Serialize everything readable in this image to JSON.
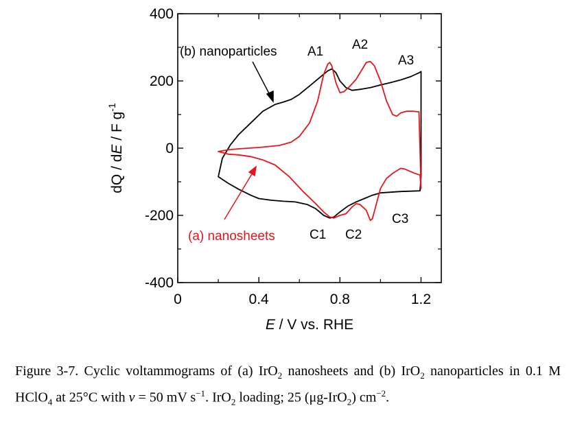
{
  "chart_data": {
    "type": "line",
    "xlabel": {
      "italic": "E",
      "rest": " / V vs. RHE"
    },
    "ylabel": {
      "pre": "dQ / d",
      "italic": "E",
      "mid": " / F g",
      "sup": "-1"
    },
    "xlim": [
      0,
      1.3
    ],
    "ylim": [
      -400,
      400
    ],
    "xticks": [
      {
        "v": 0,
        "label": "0"
      },
      {
        "v": 0.4,
        "label": "0.4"
      },
      {
        "v": 0.8,
        "label": "0.8"
      },
      {
        "v": 1.2,
        "label": "1.2"
      }
    ],
    "yticks": [
      {
        "v": -400,
        "label": "-400"
      },
      {
        "v": -200,
        "label": "-200"
      },
      {
        "v": 0,
        "label": "0"
      },
      {
        "v": 200,
        "label": "200"
      },
      {
        "v": 400,
        "label": "400"
      }
    ],
    "grid": false,
    "series": [
      {
        "name": "(b) nanoparticles",
        "color": "#000000",
        "points": [
          [
            0.2,
            -85
          ],
          [
            0.22,
            -30
          ],
          [
            0.26,
            10
          ],
          [
            0.3,
            40
          ],
          [
            0.36,
            75
          ],
          [
            0.42,
            110
          ],
          [
            0.48,
            130
          ],
          [
            0.52,
            137
          ],
          [
            0.56,
            145
          ],
          [
            0.6,
            160
          ],
          [
            0.65,
            185
          ],
          [
            0.7,
            210
          ],
          [
            0.74,
            230
          ],
          [
            0.76,
            236
          ],
          [
            0.78,
            225
          ],
          [
            0.8,
            200
          ],
          [
            0.83,
            180
          ],
          [
            0.86,
            172
          ],
          [
            0.9,
            175
          ],
          [
            0.95,
            180
          ],
          [
            1.0,
            188
          ],
          [
            1.05,
            195
          ],
          [
            1.1,
            203
          ],
          [
            1.15,
            213
          ],
          [
            1.19,
            224
          ],
          [
            1.2,
            228
          ],
          [
            1.2,
            -85
          ],
          [
            1.195,
            -127
          ],
          [
            1.15,
            -128
          ],
          [
            1.1,
            -129
          ],
          [
            1.05,
            -131
          ],
          [
            1.0,
            -133
          ],
          [
            0.96,
            -140
          ],
          [
            0.92,
            -150
          ],
          [
            0.88,
            -160
          ],
          [
            0.84,
            -172
          ],
          [
            0.8,
            -190
          ],
          [
            0.77,
            -205
          ],
          [
            0.75,
            -208
          ],
          [
            0.72,
            -200
          ],
          [
            0.68,
            -180
          ],
          [
            0.64,
            -168
          ],
          [
            0.58,
            -160
          ],
          [
            0.52,
            -158
          ],
          [
            0.46,
            -155
          ],
          [
            0.4,
            -150
          ],
          [
            0.36,
            -140
          ],
          [
            0.3,
            -122
          ],
          [
            0.25,
            -105
          ],
          [
            0.2,
            -85
          ]
        ]
      },
      {
        "name": "(a) nanosheets",
        "color": "#e8141b",
        "points": [
          [
            0.2,
            -10
          ],
          [
            0.25,
            -5
          ],
          [
            0.3,
            -2
          ],
          [
            0.4,
            2
          ],
          [
            0.5,
            8
          ],
          [
            0.56,
            18
          ],
          [
            0.6,
            35
          ],
          [
            0.65,
            75
          ],
          [
            0.69,
            140
          ],
          [
            0.72,
            220
          ],
          [
            0.74,
            250
          ],
          [
            0.75,
            255
          ],
          [
            0.76,
            245
          ],
          [
            0.78,
            195
          ],
          [
            0.8,
            165
          ],
          [
            0.82,
            168
          ],
          [
            0.85,
            185
          ],
          [
            0.88,
            205
          ],
          [
            0.91,
            235
          ],
          [
            0.93,
            255
          ],
          [
            0.95,
            258
          ],
          [
            0.97,
            245
          ],
          [
            1.0,
            200
          ],
          [
            1.03,
            140
          ],
          [
            1.06,
            100
          ],
          [
            1.08,
            95
          ],
          [
            1.1,
            105
          ],
          [
            1.13,
            110
          ],
          [
            1.16,
            110
          ],
          [
            1.19,
            108
          ],
          [
            1.2,
            -120
          ],
          [
            1.195,
            -80
          ],
          [
            1.17,
            -75
          ],
          [
            1.15,
            -70
          ],
          [
            1.12,
            -62
          ],
          [
            1.1,
            -60
          ],
          [
            1.06,
            -75
          ],
          [
            1.03,
            -90
          ],
          [
            1.0,
            -120
          ],
          [
            0.98,
            -165
          ],
          [
            0.96,
            -210
          ],
          [
            0.95,
            -215
          ],
          [
            0.93,
            -185
          ],
          [
            0.9,
            -168
          ],
          [
            0.88,
            -165
          ],
          [
            0.86,
            -175
          ],
          [
            0.83,
            -195
          ],
          [
            0.8,
            -200
          ],
          [
            0.77,
            -208
          ],
          [
            0.75,
            -205
          ],
          [
            0.72,
            -190
          ],
          [
            0.68,
            -165
          ],
          [
            0.62,
            -130
          ],
          [
            0.55,
            -85
          ],
          [
            0.48,
            -50
          ],
          [
            0.42,
            -35
          ],
          [
            0.36,
            -25
          ],
          [
            0.3,
            -20
          ],
          [
            0.25,
            -18
          ],
          [
            0.2,
            -10
          ]
        ]
      }
    ],
    "annotations": [
      {
        "id": "A1",
        "text": "A1"
      },
      {
        "id": "A2",
        "text": "A2"
      },
      {
        "id": "A3",
        "text": "A3"
      },
      {
        "id": "C1",
        "text": "C1"
      },
      {
        "id": "C2",
        "text": "C2"
      },
      {
        "id": "C3",
        "text": "C3"
      }
    ]
  },
  "caption": {
    "prefix": "Figure 3-7. Cyclic voltammograms of (a) IrO",
    "s1": "2",
    "t1": " nanosheets and (b) IrO",
    "s2": "2",
    "t2": " nanoparticles in 0.1 M HClO",
    "s3": "4",
    "t3": " at 25°C with ",
    "v": "v",
    "t4": " = 50 mV s",
    "sup1": "−1",
    "t5": ". IrO",
    "s4": "2",
    "t6": " loading; 25 (μg-IrO",
    "s5": "2",
    "t7": ") cm",
    "sup2": "−2",
    "t8": "."
  }
}
